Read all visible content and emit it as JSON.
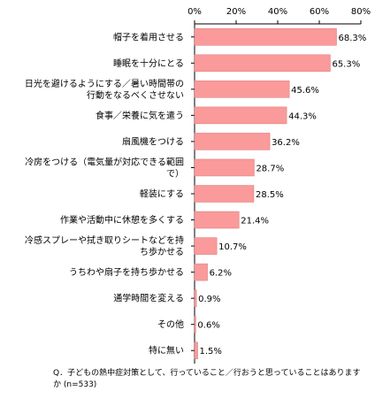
{
  "chart_data": {
    "type": "bar",
    "orientation": "horizontal",
    "categories": [
      [
        "帽子を着用させる"
      ],
      [
        "睡眠を十分にとる"
      ],
      [
        "日光を避けるようにする／暑い時間帯の",
        "行動をなるべくさせない"
      ],
      [
        "食事／栄養に気を遣う"
      ],
      [
        "扇風機をつける"
      ],
      [
        "冷房をつける（電気量が対応できる範囲",
        "で）"
      ],
      [
        "軽装にする"
      ],
      [
        "作業や活動中に休憩を多くする"
      ],
      [
        "冷感スプレーや拭き取りシートなどを持",
        "ち歩かせる"
      ],
      [
        "うちわや扇子を持ち歩かせる"
      ],
      [
        "通学時間を変える"
      ],
      [
        "その他"
      ],
      [
        "特に無い"
      ]
    ],
    "values": [
      68.3,
      65.3,
      45.6,
      44.3,
      36.2,
      28.7,
      28.5,
      21.4,
      10.7,
      6.2,
      0.9,
      0.6,
      1.5
    ],
    "value_labels": [
      "68.3%",
      "65.3%",
      "45.6%",
      "44.3%",
      "36.2%",
      "28.7%",
      "28.5%",
      "21.4%",
      "10.7%",
      "6.2%",
      "0.9%",
      "0.6%",
      "1.5%"
    ],
    "xlim": [
      0,
      80
    ],
    "ticks": [
      0,
      20,
      40,
      60,
      80
    ],
    "tick_labels": [
      "0%",
      "20%",
      "40%",
      "60%",
      "80%"
    ],
    "axis_position": "top",
    "grid": false,
    "colors": {
      "bar": "#fa9a9a",
      "bar_edge": "#d97a7a",
      "axis": "#000000"
    }
  },
  "note": "Q．子どもの熱中症対策として、行っていること／行おうと思っていることはありますか (n=533)"
}
